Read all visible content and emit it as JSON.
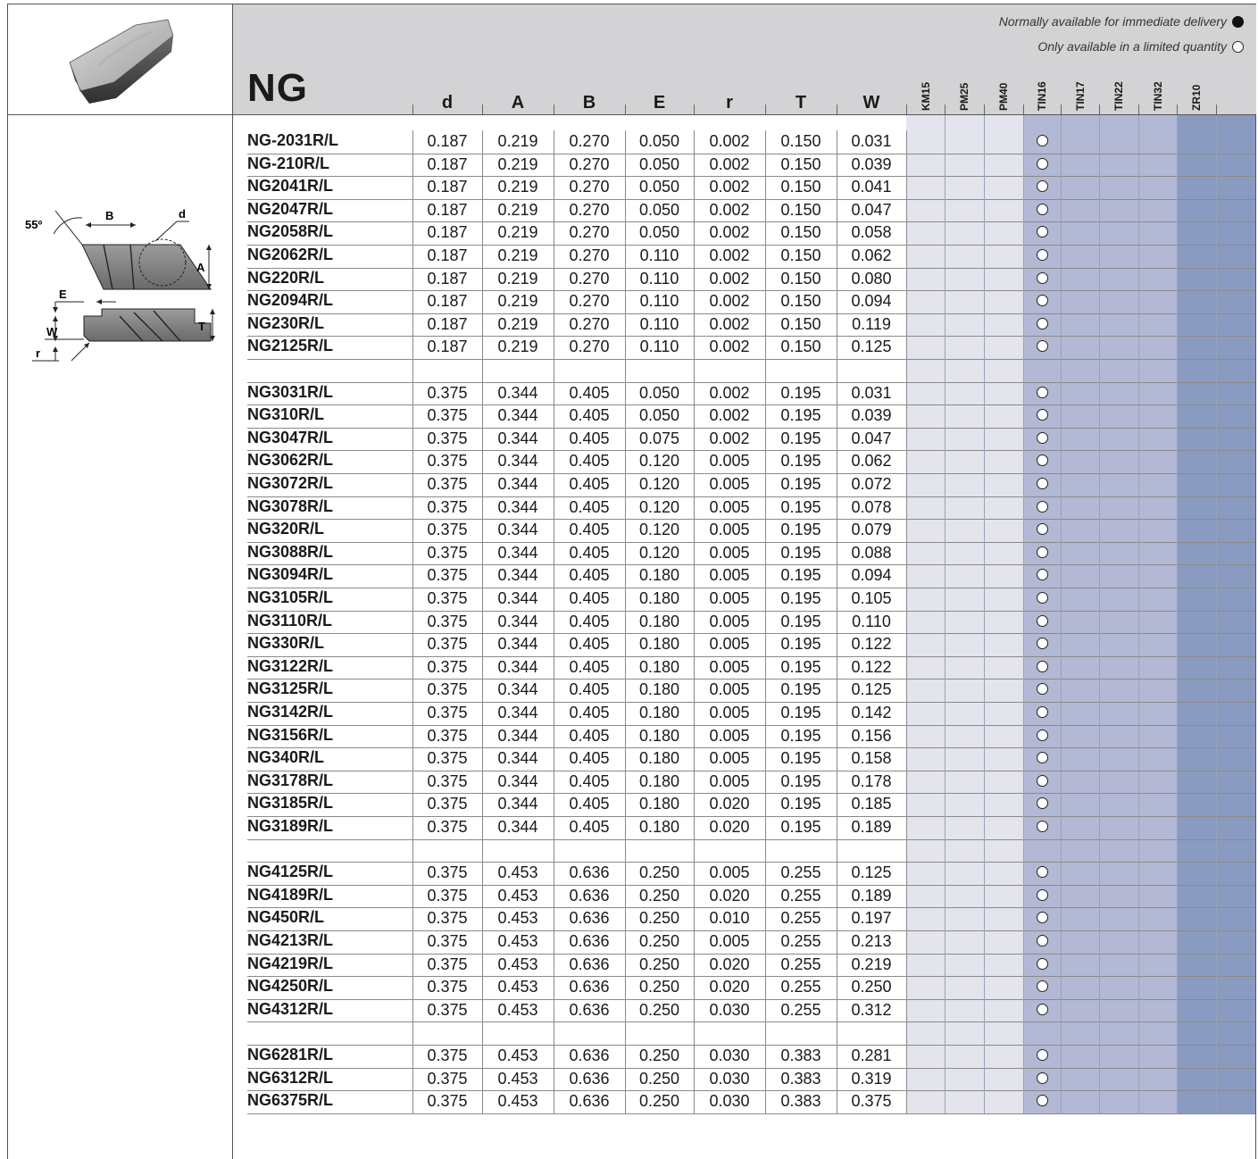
{
  "family": "NG",
  "legend": {
    "normal": "Normally available for immediate delivery",
    "limited": "Only available in a limited quantity"
  },
  "diagram_labels": {
    "angle": "55º",
    "B": "B",
    "d": "d",
    "A": "A",
    "E": "E",
    "W": "W",
    "T": "T",
    "r": "r"
  },
  "columns": [
    "d",
    "A",
    "B",
    "E",
    "r",
    "T",
    "W"
  ],
  "grades": [
    "KM15",
    "PM25",
    "PM40",
    "TIN16",
    "TIN17",
    "TIN22",
    "TIN32",
    "ZR10"
  ],
  "colors": {
    "header": "#d3d3d5",
    "grade_light": "#e3e4ec",
    "grade_mid": "#b3b8d4",
    "grade_dark": "#8a9bc1"
  },
  "groups": [
    [
      {
        "code": "NG-2031R/L",
        "d": "0.187",
        "A": "0.219",
        "B": "0.270",
        "E": "0.050",
        "r": "0.002",
        "T": "0.150",
        "W": "0.031"
      },
      {
        "code": "NG-210R/L",
        "d": "0.187",
        "A": "0.219",
        "B": "0.270",
        "E": "0.050",
        "r": "0.002",
        "T": "0.150",
        "W": "0.039"
      },
      {
        "code": "NG2041R/L",
        "d": "0.187",
        "A": "0.219",
        "B": "0.270",
        "E": "0.050",
        "r": "0.002",
        "T": "0.150",
        "W": "0.041"
      },
      {
        "code": "NG2047R/L",
        "d": "0.187",
        "A": "0.219",
        "B": "0.270",
        "E": "0.050",
        "r": "0.002",
        "T": "0.150",
        "W": "0.047"
      },
      {
        "code": "NG2058R/L",
        "d": "0.187",
        "A": "0.219",
        "B": "0.270",
        "E": "0.050",
        "r": "0.002",
        "T": "0.150",
        "W": "0.058"
      },
      {
        "code": "NG2062R/L",
        "d": "0.187",
        "A": "0.219",
        "B": "0.270",
        "E": "0.110",
        "r": "0.002",
        "T": "0.150",
        "W": "0.062"
      },
      {
        "code": "NG220R/L",
        "d": "0.187",
        "A": "0.219",
        "B": "0.270",
        "E": "0.110",
        "r": "0.002",
        "T": "0.150",
        "W": "0.080"
      },
      {
        "code": "NG2094R/L",
        "d": "0.187",
        "A": "0.219",
        "B": "0.270",
        "E": "0.110",
        "r": "0.002",
        "T": "0.150",
        "W": "0.094"
      },
      {
        "code": "NG230R/L",
        "d": "0.187",
        "A": "0.219",
        "B": "0.270",
        "E": "0.110",
        "r": "0.002",
        "T": "0.150",
        "W": "0.119"
      },
      {
        "code": "NG2125R/L",
        "d": "0.187",
        "A": "0.219",
        "B": "0.270",
        "E": "0.110",
        "r": "0.002",
        "T": "0.150",
        "W": "0.125"
      }
    ],
    [
      {
        "code": "NG3031R/L",
        "d": "0.375",
        "A": "0.344",
        "B": "0.405",
        "E": "0.050",
        "r": "0.002",
        "T": "0.195",
        "W": "0.031"
      },
      {
        "code": "NG310R/L",
        "d": "0.375",
        "A": "0.344",
        "B": "0.405",
        "E": "0.050",
        "r": "0.002",
        "T": "0.195",
        "W": "0.039"
      },
      {
        "code": "NG3047R/L",
        "d": "0.375",
        "A": "0.344",
        "B": "0.405",
        "E": "0.075",
        "r": "0.002",
        "T": "0.195",
        "W": "0.047"
      },
      {
        "code": "NG3062R/L",
        "d": "0.375",
        "A": "0.344",
        "B": "0.405",
        "E": "0.120",
        "r": "0.005",
        "T": "0.195",
        "W": "0.062"
      },
      {
        "code": "NG3072R/L",
        "d": "0.375",
        "A": "0.344",
        "B": "0.405",
        "E": "0.120",
        "r": "0.005",
        "T": "0.195",
        "W": "0.072"
      },
      {
        "code": "NG3078R/L",
        "d": "0.375",
        "A": "0.344",
        "B": "0.405",
        "E": "0.120",
        "r": "0.005",
        "T": "0.195",
        "W": "0.078"
      },
      {
        "code": "NG320R/L",
        "d": "0.375",
        "A": "0.344",
        "B": "0.405",
        "E": "0.120",
        "r": "0.005",
        "T": "0.195",
        "W": "0.079"
      },
      {
        "code": "NG3088R/L",
        "d": "0.375",
        "A": "0.344",
        "B": "0.405",
        "E": "0.120",
        "r": "0.005",
        "T": "0.195",
        "W": "0.088"
      },
      {
        "code": "NG3094R/L",
        "d": "0.375",
        "A": "0.344",
        "B": "0.405",
        "E": "0.180",
        "r": "0.005",
        "T": "0.195",
        "W": "0.094"
      },
      {
        "code": "NG3105R/L",
        "d": "0.375",
        "A": "0.344",
        "B": "0.405",
        "E": "0.180",
        "r": "0.005",
        "T": "0.195",
        "W": "0.105"
      },
      {
        "code": "NG3110R/L",
        "d": "0.375",
        "A": "0.344",
        "B": "0.405",
        "E": "0.180",
        "r": "0.005",
        "T": "0.195",
        "W": "0.110"
      },
      {
        "code": "NG330R/L",
        "d": "0.375",
        "A": "0.344",
        "B": "0.405",
        "E": "0.180",
        "r": "0.005",
        "T": "0.195",
        "W": "0.122"
      },
      {
        "code": "NG3122R/L",
        "d": "0.375",
        "A": "0.344",
        "B": "0.405",
        "E": "0.180",
        "r": "0.005",
        "T": "0.195",
        "W": "0.122"
      },
      {
        "code": "NG3125R/L",
        "d": "0.375",
        "A": "0.344",
        "B": "0.405",
        "E": "0.180",
        "r": "0.005",
        "T": "0.195",
        "W": "0.125"
      },
      {
        "code": "NG3142R/L",
        "d": "0.375",
        "A": "0.344",
        "B": "0.405",
        "E": "0.180",
        "r": "0.005",
        "T": "0.195",
        "W": "0.142"
      },
      {
        "code": "NG3156R/L",
        "d": "0.375",
        "A": "0.344",
        "B": "0.405",
        "E": "0.180",
        "r": "0.005",
        "T": "0.195",
        "W": "0.156"
      },
      {
        "code": "NG340R/L",
        "d": "0.375",
        "A": "0.344",
        "B": "0.405",
        "E": "0.180",
        "r": "0.005",
        "T": "0.195",
        "W": "0.158"
      },
      {
        "code": "NG3178R/L",
        "d": "0.375",
        "A": "0.344",
        "B": "0.405",
        "E": "0.180",
        "r": "0.005",
        "T": "0.195",
        "W": "0.178"
      },
      {
        "code": "NG3185R/L",
        "d": "0.375",
        "A": "0.344",
        "B": "0.405",
        "E": "0.180",
        "r": "0.020",
        "T": "0.195",
        "W": "0.185"
      },
      {
        "code": "NG3189R/L",
        "d": "0.375",
        "A": "0.344",
        "B": "0.405",
        "E": "0.180",
        "r": "0.020",
        "T": "0.195",
        "W": "0.189"
      }
    ],
    [
      {
        "code": "NG4125R/L",
        "d": "0.375",
        "A": "0.453",
        "B": "0.636",
        "E": "0.250",
        "r": "0.005",
        "T": "0.255",
        "W": "0.125"
      },
      {
        "code": "NG4189R/L",
        "d": "0.375",
        "A": "0.453",
        "B": "0.636",
        "E": "0.250",
        "r": "0.020",
        "T": "0.255",
        "W": "0.189"
      },
      {
        "code": "NG450R/L",
        "d": "0.375",
        "A": "0.453",
        "B": "0.636",
        "E": "0.250",
        "r": "0.010",
        "T": "0.255",
        "W": "0.197"
      },
      {
        "code": "NG4213R/L",
        "d": "0.375",
        "A": "0.453",
        "B": "0.636",
        "E": "0.250",
        "r": "0.005",
        "T": "0.255",
        "W": "0.213"
      },
      {
        "code": "NG4219R/L",
        "d": "0.375",
        "A": "0.453",
        "B": "0.636",
        "E": "0.250",
        "r": "0.020",
        "T": "0.255",
        "W": "0.219"
      },
      {
        "code": "NG4250R/L",
        "d": "0.375",
        "A": "0.453",
        "B": "0.636",
        "E": "0.250",
        "r": "0.020",
        "T": "0.255",
        "W": "0.250"
      },
      {
        "code": "NG4312R/L",
        "d": "0.375",
        "A": "0.453",
        "B": "0.636",
        "E": "0.250",
        "r": "0.030",
        "T": "0.255",
        "W": "0.312"
      }
    ],
    [
      {
        "code": "NG6281R/L",
        "d": "0.375",
        "A": "0.453",
        "B": "0.636",
        "E": "0.250",
        "r": "0.030",
        "T": "0.383",
        "W": "0.281"
      },
      {
        "code": "NG6312R/L",
        "d": "0.375",
        "A": "0.453",
        "B": "0.636",
        "E": "0.250",
        "r": "0.030",
        "T": "0.383",
        "W": "0.319"
      },
      {
        "code": "NG6375R/L",
        "d": "0.375",
        "A": "0.453",
        "B": "0.636",
        "E": "0.250",
        "r": "0.030",
        "T": "0.383",
        "W": "0.375"
      }
    ]
  ],
  "availability": {
    "grade": "TIN16",
    "status": "limited"
  }
}
